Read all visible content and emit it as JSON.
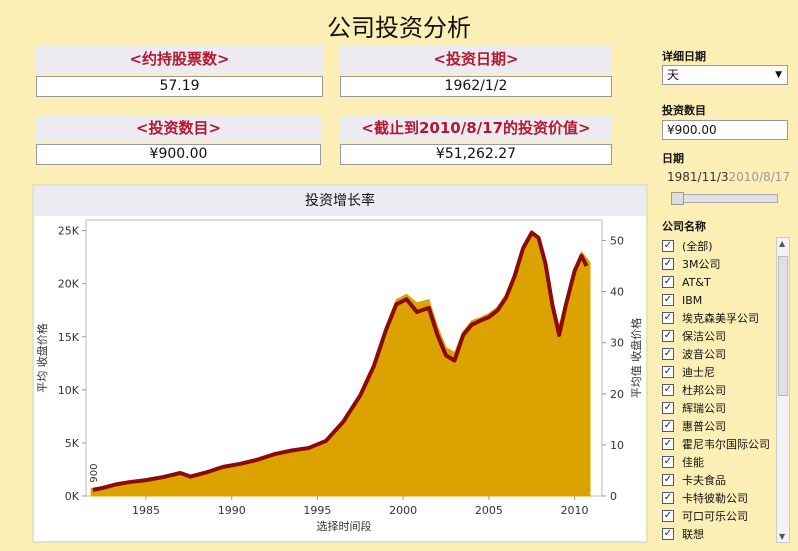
{
  "page_title": "公司投资分析",
  "kpis": [
    {
      "label": "<约持股票数>",
      "value": "57.19"
    },
    {
      "label": "<投资日期>",
      "value": "1962/1/2"
    },
    {
      "label": "<投资数目>",
      "value": "¥900.00"
    },
    {
      "label": "<截止到2010/8/17的投资价值>",
      "value": "¥51,262.27"
    }
  ],
  "filters": {
    "detail_date_label": "详细日期",
    "detail_date_value": "天",
    "amount_label": "投资数目",
    "amount_value": "¥900.00",
    "date_label": "日期",
    "date_range_start": "1981/11/3",
    "date_range_end": "2010/8/17",
    "company_label": "公司名称",
    "companies": [
      "(全部)",
      "3M公司",
      "AT&T",
      "IBM",
      "埃克森美孚公司",
      "保洁公司",
      "波音公司",
      "迪士尼",
      "杜邦公司",
      "辉瑞公司",
      "惠普公司",
      "霍尼韦尔国际公司",
      "佳能",
      "卡夫食品",
      "卡特彼勒公司",
      "可口可乐公司",
      "联想"
    ]
  },
  "colors": {
    "bar": "#dca200",
    "line": "#8b0a0a",
    "kpi_label": "#b5172f"
  },
  "chart_data": {
    "type": "area",
    "title": "投资增长率",
    "xlabel": "选择时间段",
    "ylabel_left": "平均 收盘价格",
    "ylabel_right": "平均值 收盘价格",
    "xticks": [
      "1985",
      "1990",
      "1995",
      "2000",
      "2005",
      "2010"
    ],
    "yticks_left": [
      "0K",
      "5K",
      "10K",
      "15K",
      "20K",
      "25K"
    ],
    "yticks_right": [
      "0",
      "10",
      "20",
      "30",
      "40",
      "50"
    ],
    "xlim": [
      1981.5,
      2011.6
    ],
    "ylim_left": [
      0,
      26000
    ],
    "ylim_right": [
      0,
      54
    ],
    "annotation": "900",
    "series": [
      {
        "axis": "left",
        "x": [
          1981.8,
          1982.5,
          1983.3,
          1984.0,
          1985.0,
          1986.0,
          1987.0,
          1987.6,
          1988.5,
          1989.5,
          1990.5,
          1991.5,
          1992.5,
          1993.5,
          1994.5,
          1995.5,
          1996.5,
          1997.5,
          1998.3,
          1999.0,
          1999.6,
          2000.2,
          2000.8,
          2001.5,
          2002.0,
          2002.5,
          2003.0,
          2003.5,
          2004.0,
          2004.5,
          2005.0,
          2005.5,
          2006.0,
          2006.5,
          2007.0,
          2007.5,
          2007.9,
          2008.3,
          2008.7,
          2009.1,
          2009.5,
          2010.0,
          2010.4,
          2010.9
        ],
        "values": [
          700,
          800,
          1100,
          1300,
          1500,
          1800,
          2200,
          1900,
          2300,
          2800,
          3100,
          3500,
          4000,
          4300,
          4600,
          5200,
          7000,
          9500,
          12500,
          16000,
          18500,
          19000,
          18200,
          18500,
          16000,
          14000,
          13500,
          15500,
          16500,
          16800,
          17200,
          17800,
          19000,
          21000,
          23500,
          25000,
          24500,
          22000,
          18500,
          16000,
          18500,
          21500,
          23000,
          22000
        ]
      },
      {
        "axis": "right",
        "x": [
          1981.9,
          1982.5,
          1983.3,
          1984.0,
          1985.0,
          1986.0,
          1987.0,
          1987.6,
          1988.5,
          1989.5,
          1990.5,
          1991.5,
          1992.5,
          1993.5,
          1994.5,
          1995.5,
          1996.5,
          1997.5,
          1998.3,
          1999.0,
          1999.6,
          2000.2,
          2000.8,
          2001.5,
          2002.0,
          2002.5,
          2003.0,
          2003.5,
          2004.0,
          2004.5,
          2005.0,
          2005.5,
          2006.0,
          2006.5,
          2007.0,
          2007.5,
          2007.9,
          2008.3,
          2008.7,
          2009.1,
          2009.5,
          2010.0,
          2010.4,
          2010.7
        ],
        "values": [
          1.2,
          1.6,
          2.3,
          2.7,
          3.1,
          3.7,
          4.5,
          3.8,
          4.6,
          5.7,
          6.3,
          7.1,
          8.2,
          8.9,
          9.4,
          10.8,
          14.5,
          19.7,
          25.5,
          32.5,
          37.5,
          38.5,
          36.0,
          36.8,
          31.5,
          27.5,
          26.5,
          31.5,
          33.5,
          34.3,
          35.0,
          36.3,
          38.8,
          43.0,
          48.5,
          51.5,
          50.5,
          45.5,
          37.5,
          31.5,
          37.5,
          44.0,
          47.0,
          45.0
        ]
      }
    ]
  }
}
